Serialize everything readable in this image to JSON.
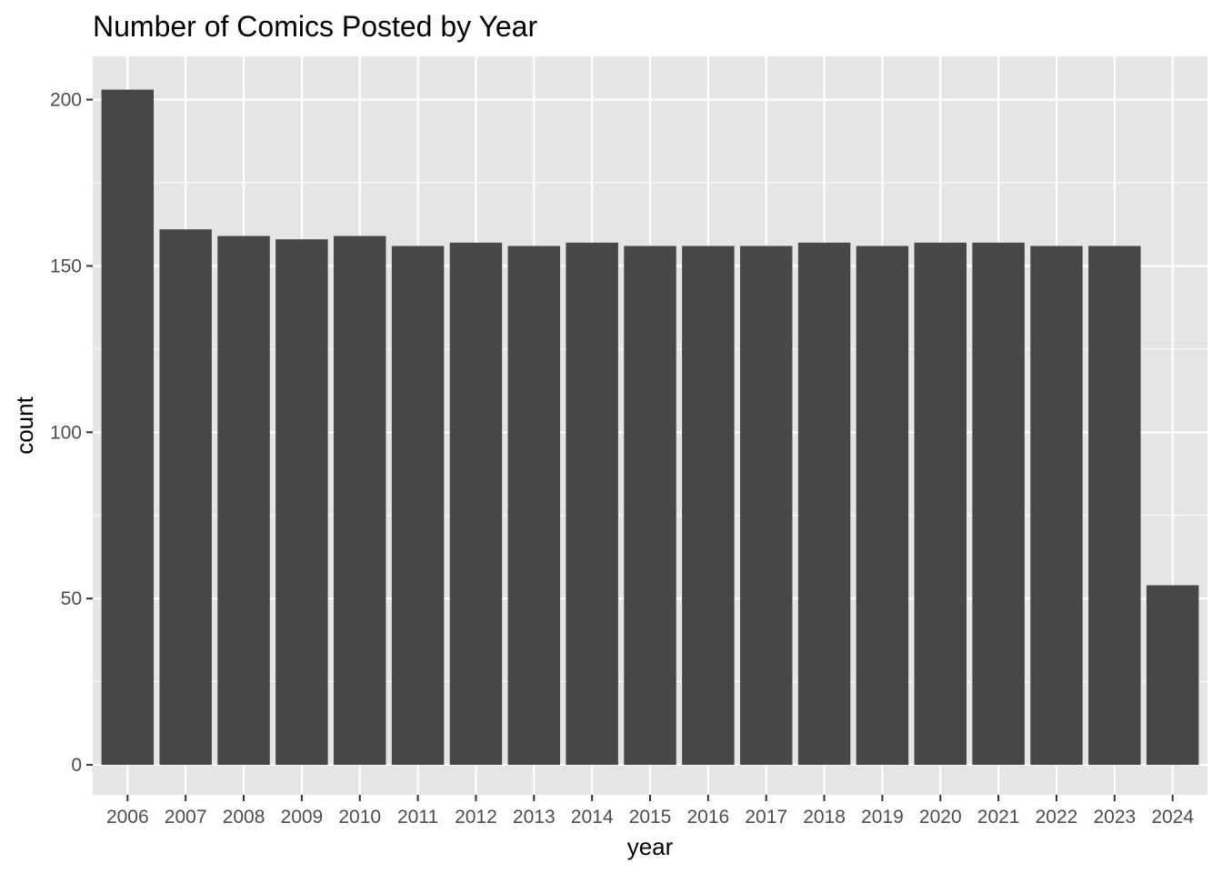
{
  "chart_data": {
    "type": "bar",
    "title": "Number of Comics Posted by Year",
    "xlabel": "year",
    "ylabel": "count",
    "categories": [
      "2006",
      "2007",
      "2008",
      "2009",
      "2010",
      "2011",
      "2012",
      "2013",
      "2014",
      "2015",
      "2016",
      "2017",
      "2018",
      "2019",
      "2020",
      "2021",
      "2022",
      "2023",
      "2024"
    ],
    "values": [
      203,
      161,
      159,
      158,
      159,
      156,
      157,
      156,
      157,
      156,
      156,
      156,
      157,
      156,
      157,
      157,
      156,
      156,
      54
    ],
    "ylim": [
      -9,
      213
    ],
    "yticks": [
      0,
      50,
      100,
      150,
      200
    ],
    "grid": true,
    "legend": "none",
    "colors": {
      "bar": "#474747",
      "panel": "#e5e5e5",
      "grid": "#ffffff",
      "tick_text": "#4d4d4d",
      "tick_mark": "#333333"
    }
  }
}
